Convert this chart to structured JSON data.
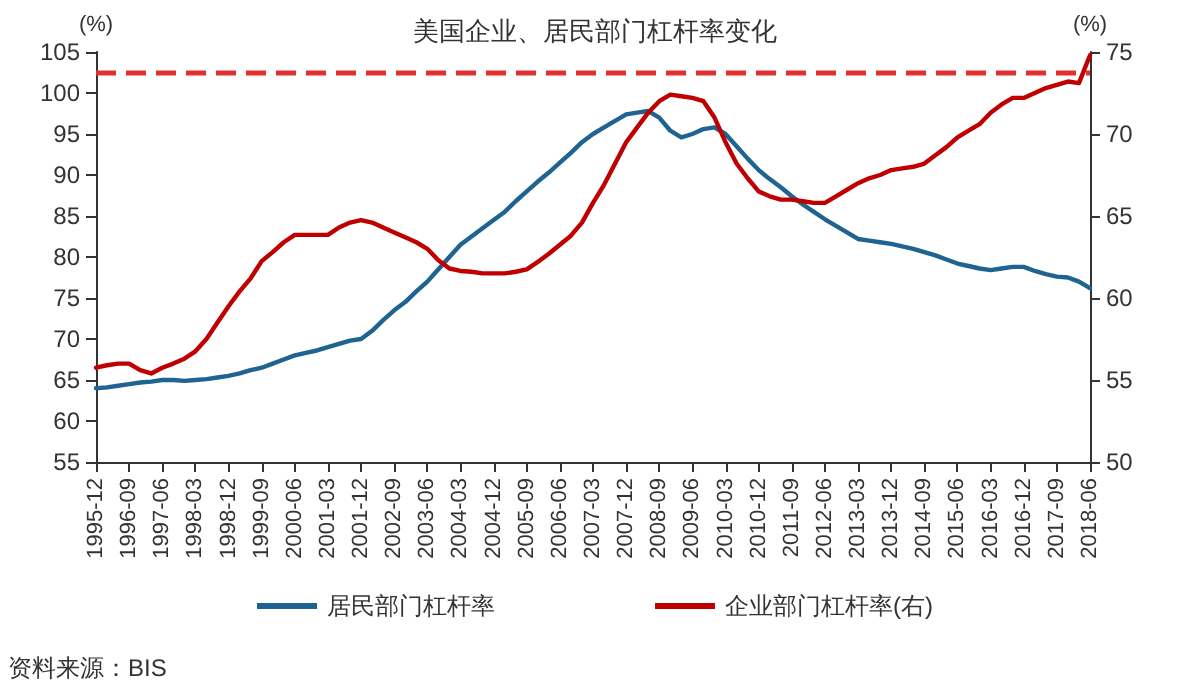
{
  "chart_data": {
    "type": "line",
    "title": "美国企业、居民部门杠杆率变化",
    "ylabel": "(%)",
    "y2label": "(%)",
    "categories": [
      "1995-12",
      null,
      null,
      "1996-09",
      null,
      null,
      "1997-06",
      null,
      null,
      "1998-03",
      null,
      null,
      "1998-12",
      null,
      null,
      "1999-09",
      null,
      null,
      "2000-06",
      null,
      null,
      "2001-03",
      null,
      null,
      "2001-12",
      null,
      null,
      "2002-09",
      null,
      null,
      "2003-06",
      null,
      null,
      "2004-03",
      null,
      null,
      "2004-12",
      null,
      null,
      "2005-09",
      null,
      null,
      "2006-06",
      null,
      null,
      "2007-03",
      null,
      null,
      "2007-12",
      null,
      null,
      "2008-09",
      null,
      null,
      "2009-06",
      null,
      null,
      "2010-03",
      null,
      null,
      "2010-12",
      null,
      null,
      "2011-09",
      null,
      null,
      "2012-06",
      null,
      null,
      "2013-03",
      null,
      null,
      "2013-12",
      null,
      null,
      "2014-09",
      null,
      null,
      "2015-06",
      null,
      null,
      "2016-03",
      null,
      null,
      "2016-12",
      null,
      null,
      "2017-09",
      null,
      null,
      "2018-06"
    ],
    "series": [
      {
        "name": "居民部门杠杆率",
        "color": "#1f6390",
        "values": [
          64,
          64.1,
          64.3,
          64.5,
          64.7,
          64.8,
          65,
          65,
          64.9,
          65,
          65.1,
          65.3,
          65.5,
          65.8,
          66.2,
          66.5,
          67,
          67.5,
          68,
          68.3,
          68.6,
          69,
          69.4,
          69.8,
          70,
          71,
          72.3,
          73.5,
          74.5,
          75.8,
          77,
          78.5,
          80,
          81.5,
          82.5,
          83.5,
          84.5,
          85.5,
          86.8,
          88,
          89.2,
          90.3,
          91.5,
          92.7,
          94,
          95,
          95.8,
          96.6,
          97.4,
          97.6,
          97.8,
          97,
          95.4,
          94.6,
          95,
          95.6,
          95.8,
          95,
          93.5,
          92,
          90.6,
          89.5,
          88.5,
          87.4,
          86.4,
          85.5,
          84.6,
          83.8,
          83,
          82.2,
          82,
          81.8,
          81.6,
          81.3,
          81,
          80.6,
          80.2,
          79.7,
          79.2,
          78.9,
          78.6,
          78.4,
          78.6,
          78.8,
          78.8,
          78.3,
          77.9,
          77.6,
          77.5,
          77,
          76.2
        ]
      },
      {
        "name": "企业部门杠杆率(右)",
        "color": "#c00000",
        "axis": "y2",
        "values": [
          55.75,
          55.9,
          56,
          56,
          55.6,
          55.4,
          55.75,
          56,
          56.3,
          56.75,
          57.5,
          58.5,
          59.5,
          60.4,
          61.2,
          62.25,
          62.8,
          63.4,
          63.85,
          63.85,
          63.85,
          63.85,
          64.3,
          64.6,
          64.75,
          64.6,
          64.3,
          64,
          63.7,
          63.4,
          63,
          62.3,
          61.8,
          61.65,
          61.6,
          61.5,
          61.5,
          61.5,
          61.6,
          61.75,
          62.2,
          62.7,
          63.25,
          63.8,
          64.6,
          65.8,
          66.9,
          68.2,
          69.5,
          70.4,
          71.3,
          72,
          72.4,
          72.3,
          72.2,
          72,
          71,
          69.5,
          68.2,
          67.3,
          66.5,
          66.2,
          66,
          66,
          65.9,
          65.8,
          65.8,
          66.2,
          66.6,
          67,
          67.3,
          67.5,
          67.8,
          67.9,
          68,
          68.2,
          68.7,
          69.2,
          69.8,
          70.2,
          70.6,
          71.3,
          71.8,
          72.2,
          72.2,
          72.5,
          72.8,
          73,
          73.2,
          73.1,
          74.8
        ]
      }
    ],
    "ylim": [
      55,
      105
    ],
    "yticks": [
      55,
      60,
      65,
      70,
      75,
      80,
      85,
      90,
      95,
      100,
      105
    ],
    "y2lim": [
      50,
      75
    ],
    "y2ticks": [
      50,
      55,
      60,
      65,
      70,
      75
    ],
    "ref_lines": [
      {
        "axis": "y2",
        "value": 73.8,
        "color": "#e03030",
        "line_style": "dashed"
      }
    ],
    "legend": "bottom",
    "grid": false,
    "marker": "none",
    "line_style": "solid",
    "annotations": [
      "资料来源：BIS"
    ]
  }
}
